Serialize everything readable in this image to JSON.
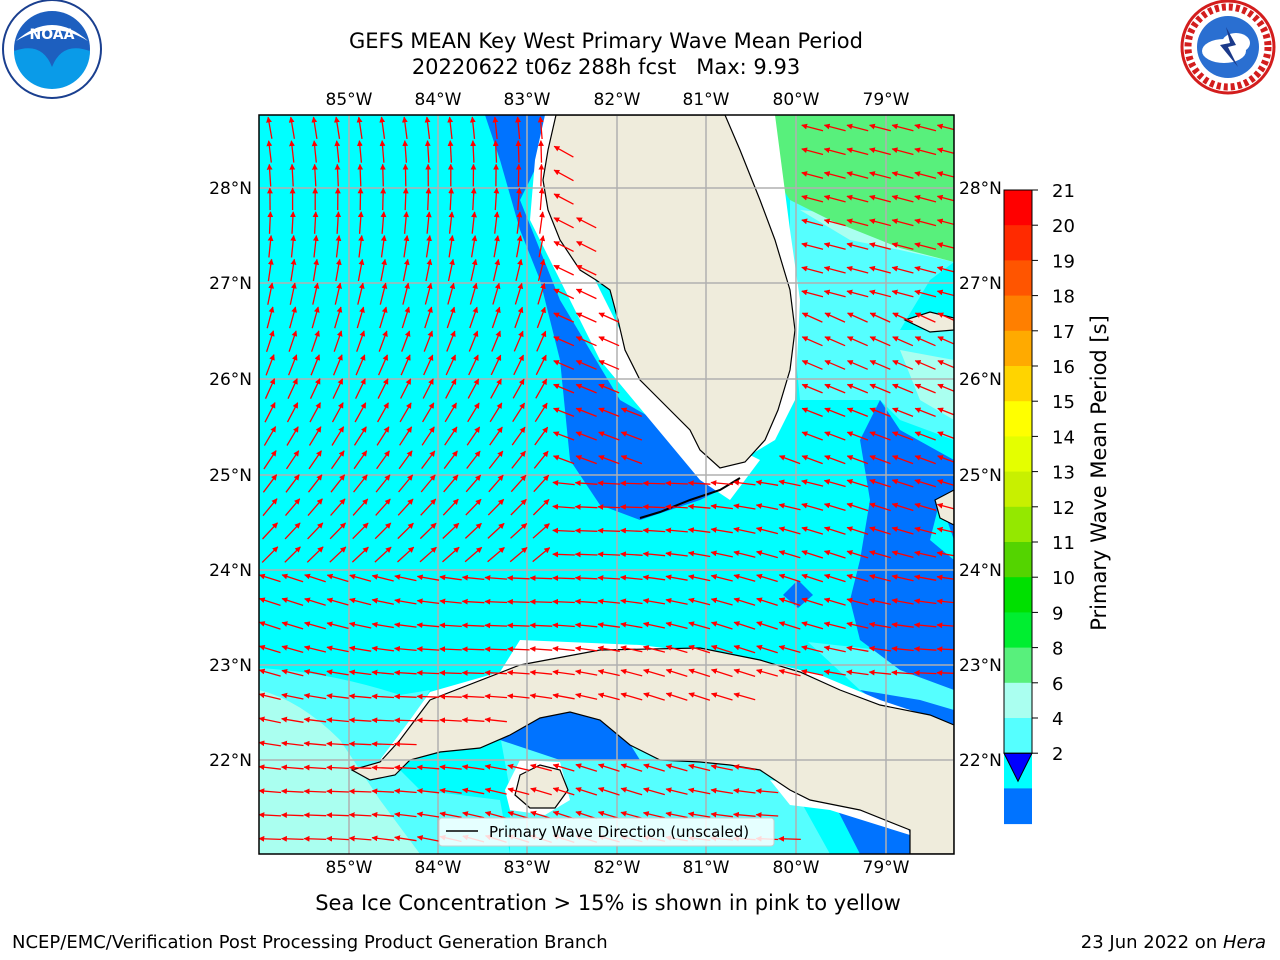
{
  "title_line1": "GEFS MEAN Key West Primary Wave Mean Period",
  "title_line2": "20220622 t06z 288h fcst",
  "max_label": "Max: 9.93",
  "logos": {
    "left": "noaa-logo",
    "right": "national-weather-service-logo"
  },
  "map": {
    "lon_labels": [
      "85°W",
      "84°W",
      "83°W",
      "82°W",
      "81°W",
      "80°W",
      "79°W"
    ],
    "lat_labels": [
      "28°N",
      "27°N",
      "26°N",
      "25°N",
      "24°N",
      "23°N",
      "22°N"
    ],
    "lon_range": [
      -86.0,
      -78.3
    ],
    "lat_range": [
      21.0,
      28.8
    ],
    "legend_label": "Primary Wave Direction (unscaled)",
    "arrow_color": "#ff0000",
    "land_color": "#efecdc",
    "grid": true
  },
  "colorbar": {
    "label": "Primary Wave Mean Period [s]",
    "ticks": [
      "21",
      "20",
      "19",
      "18",
      "17",
      "16",
      "15",
      "14",
      "13",
      "12",
      "11",
      "10",
      "9",
      "8",
      "6",
      "4",
      "2"
    ],
    "colors": [
      "#ff0000",
      "#ff2a00",
      "#ff5500",
      "#ff7f00",
      "#ffaa00",
      "#ffd400",
      "#ffff00",
      "#e4ff00",
      "#c8f000",
      "#94e800",
      "#54d400",
      "#00e000",
      "#00ee30",
      "#58f07c",
      "#aafff0",
      "#55ffff",
      "#00ffff",
      "#0073ff"
    ],
    "extend_color": "#0000ff"
  },
  "sea_ice_note": "Sea Ice Concentration > 15% is shown in pink to yellow",
  "footer_left": "NCEP/EMC/Verification Post Processing Product Generation Branch",
  "footer_right_prefix": "23 Jun 2022 on ",
  "footer_right_host": "Hera"
}
